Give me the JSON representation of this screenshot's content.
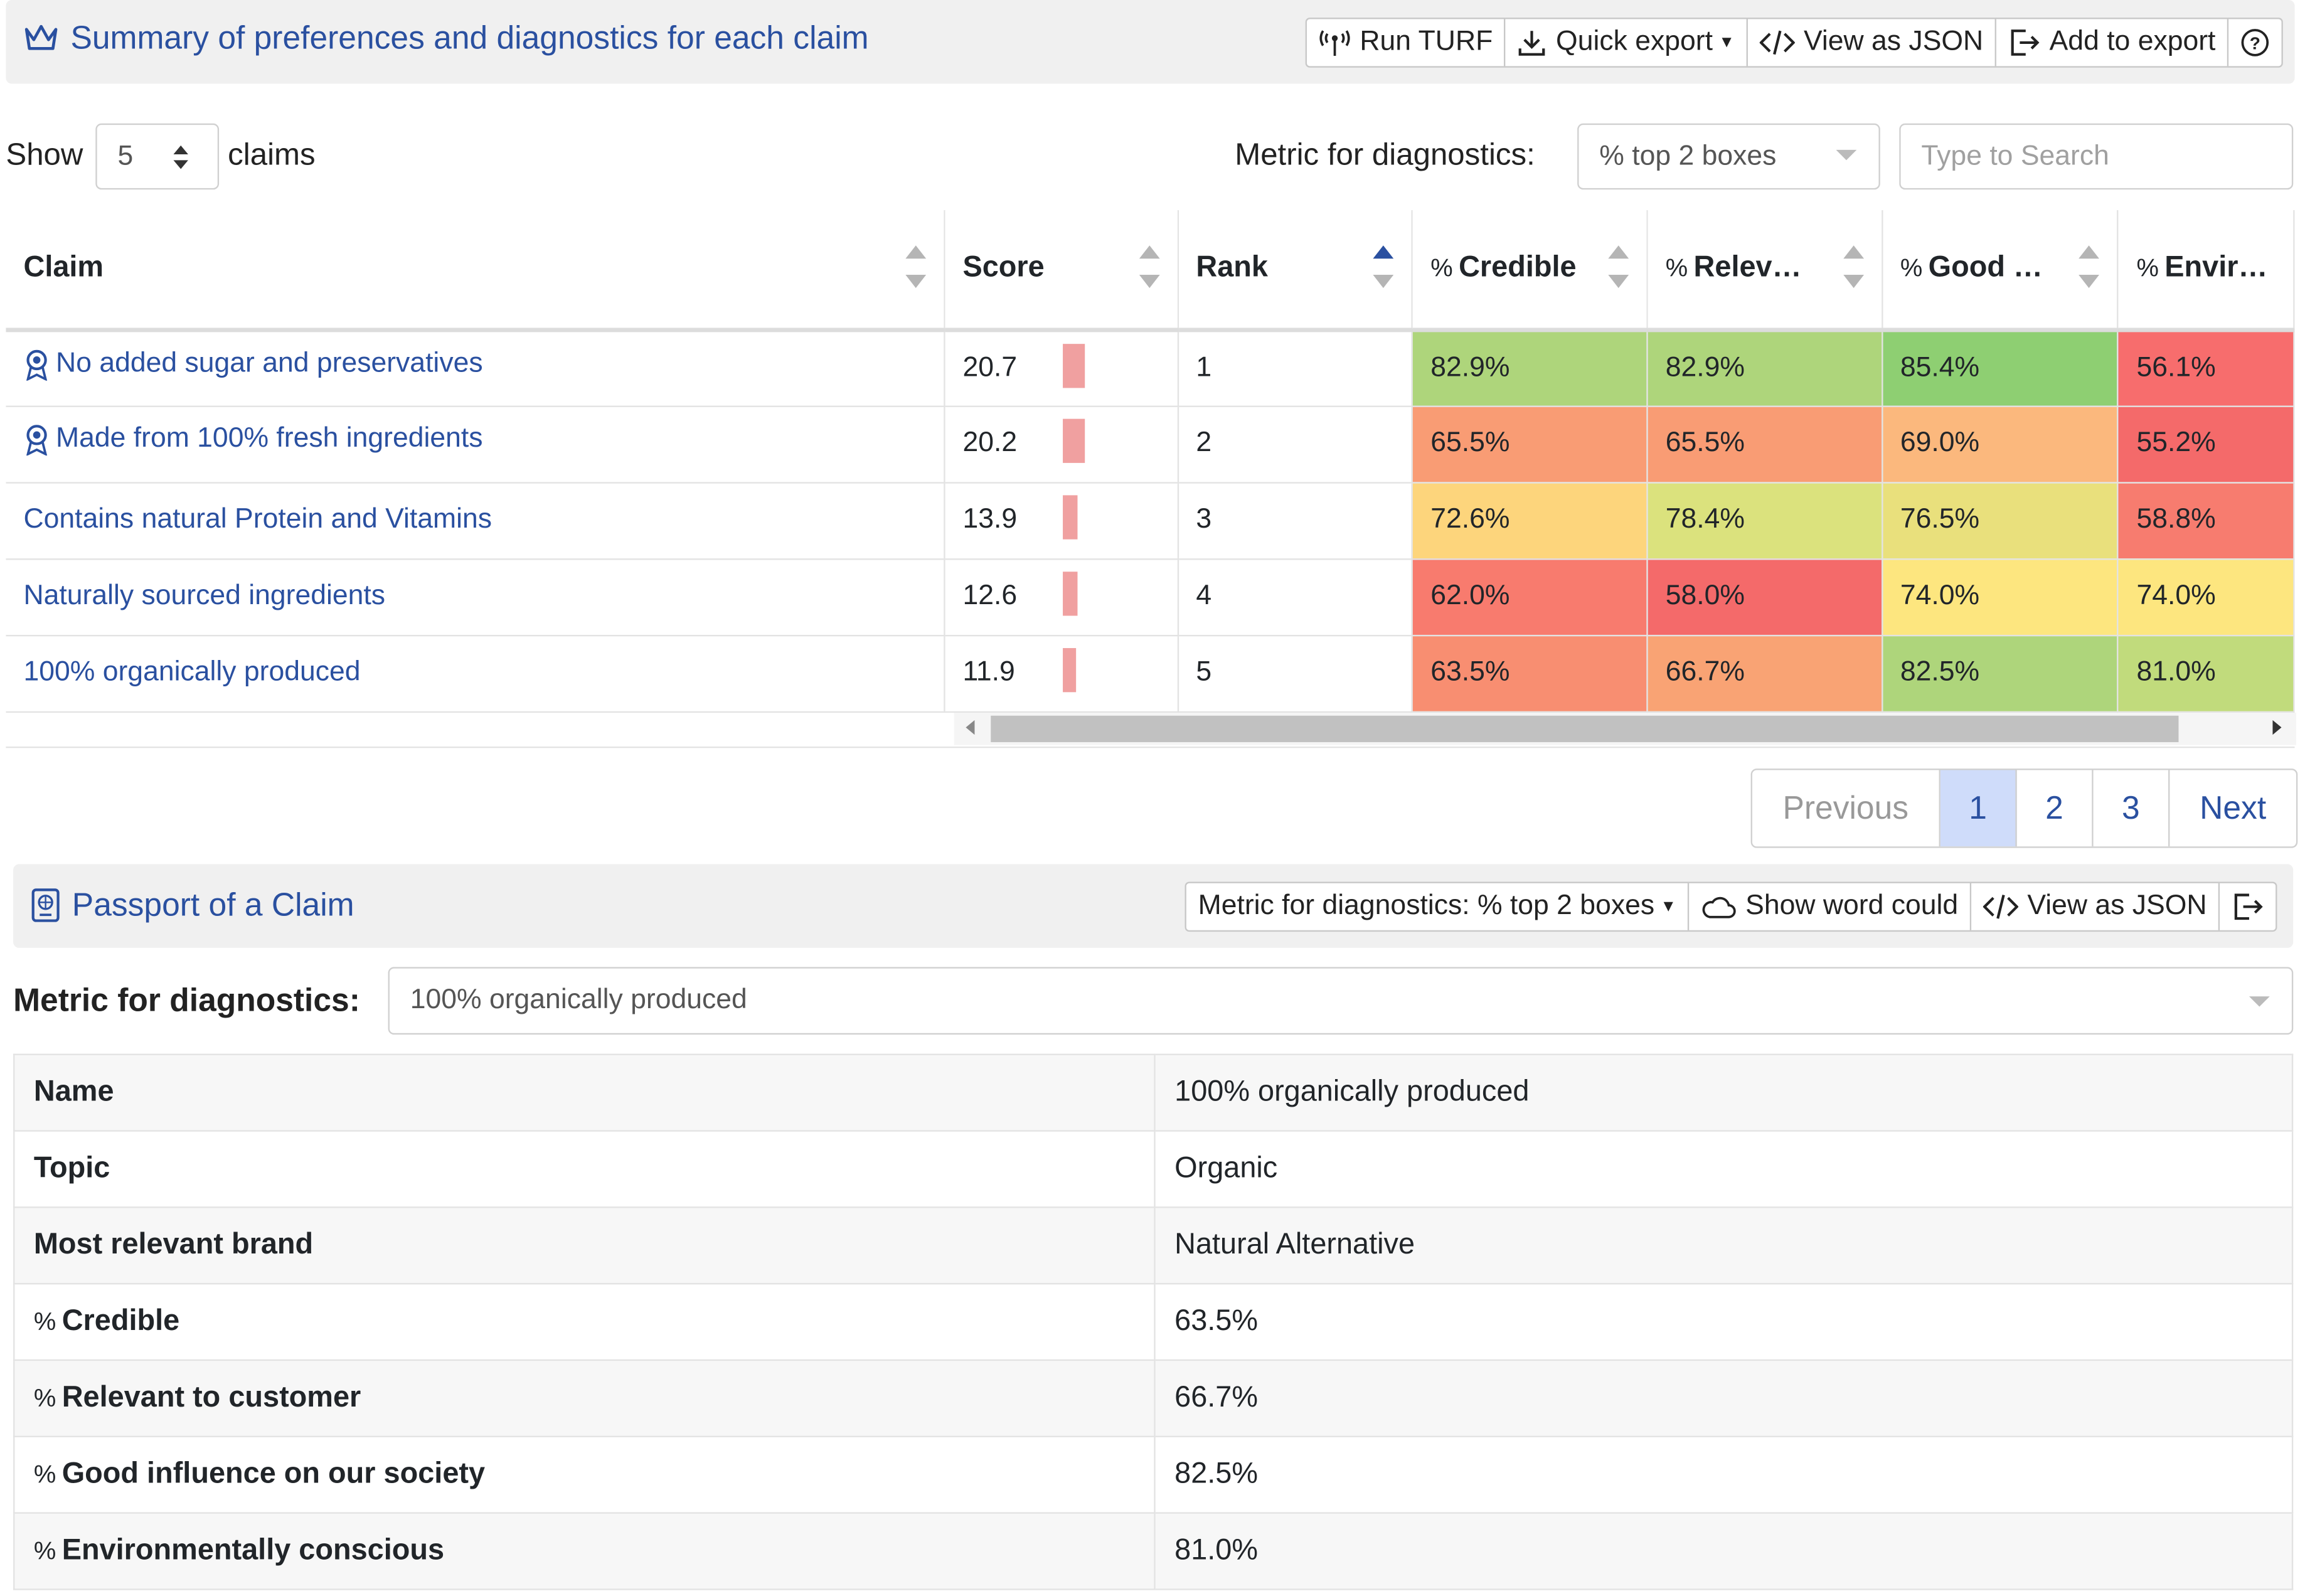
{
  "summary": {
    "title": "Summary of preferences and diagnostics for each claim",
    "toolbar": {
      "run_turf": "Run TURF",
      "quick_export": "Quick export",
      "view_json": "View as JSON",
      "add_export": "Add to export"
    }
  },
  "controls": {
    "show_label": "Show",
    "show_value": "5",
    "claims_label": "claims",
    "metric_label": "Metric for diagnostics:",
    "metric_value": "% top 2 boxes",
    "search_placeholder": "Type to Search"
  },
  "table": {
    "headers": [
      "Claim",
      "Score",
      "Rank",
      "Credible",
      "Relev…",
      "Good …",
      "Envir…"
    ],
    "rows": [
      {
        "claim": "No added sugar and preservatives",
        "award": true,
        "score": "20.7",
        "bar": 20.7,
        "rank": "1",
        "credible": "82.9%",
        "relevant": "82.9%",
        "good": "85.4%",
        "env": "56.1%"
      },
      {
        "claim": "Made from 100% fresh ingredients",
        "award": true,
        "score": "20.2",
        "bar": 20.2,
        "rank": "2",
        "credible": "65.5%",
        "relevant": "65.5%",
        "good": "69.0%",
        "env": "55.2%"
      },
      {
        "claim": "Contains natural Protein and Vitamins",
        "award": false,
        "score": "13.9",
        "bar": 13.9,
        "rank": "3",
        "credible": "72.6%",
        "relevant": "78.4%",
        "good": "76.5%",
        "env": "58.8%"
      },
      {
        "claim": "Naturally sourced ingredients",
        "award": false,
        "score": "12.6",
        "bar": 12.6,
        "rank": "4",
        "credible": "62.0%",
        "relevant": "58.0%",
        "good": "74.0%",
        "env": "74.0%"
      },
      {
        "claim": "100% organically produced",
        "award": false,
        "score": "11.9",
        "bar": 11.9,
        "rank": "5",
        "credible": "63.5%",
        "relevant": "66.7%",
        "good": "82.5%",
        "env": "81.0%"
      }
    ],
    "cell_colors": [
      [
        "#aed57b",
        "#aed57b",
        "#8ecf72",
        "#f76d6d"
      ],
      [
        "#f99c74",
        "#f99c74",
        "#fbb87d",
        "#f46a6a"
      ],
      [
        "#fdd57c",
        "#dbe27d",
        "#e9e07c",
        "#f77c6f"
      ],
      [
        "#f87b6e",
        "#f46a6a",
        "#fde67f",
        "#fde67f"
      ],
      [
        "#f88e71",
        "#f9a374",
        "#aed57b",
        "#c1db7c"
      ]
    ]
  },
  "pagination": {
    "previous": "Previous",
    "pages": [
      "1",
      "2",
      "3"
    ],
    "next": "Next"
  },
  "passport": {
    "title": "Passport of a Claim",
    "toolbar": {
      "metric": "Metric for diagnostics: % top 2 boxes",
      "word_cloud": "Show word could",
      "view_json": "View as JSON"
    },
    "select_label": "Metric for diagnostics:",
    "select_value": "100% organically produced",
    "rows": [
      {
        "key": "Name",
        "value": "100% organically produced",
        "pct": false
      },
      {
        "key": "Topic",
        "value": "Organic",
        "pct": false
      },
      {
        "key": "Most relevant brand",
        "value": "Natural Alternative",
        "pct": false
      },
      {
        "key": "Credible",
        "value": "63.5%",
        "pct": true
      },
      {
        "key": "Relevant to customer",
        "value": "66.7%",
        "pct": true
      },
      {
        "key": "Good influence on our society",
        "value": "82.5%",
        "pct": true
      },
      {
        "key": "Environmentally conscious",
        "value": "81.0%",
        "pct": true
      }
    ]
  },
  "colors": {
    "accent": "#2a50a0",
    "score_bar": "#f0a0a0",
    "active_page": "#cfdcfa"
  }
}
